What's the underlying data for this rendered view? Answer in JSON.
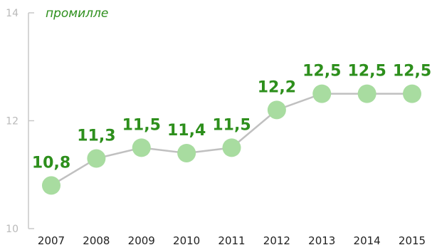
{
  "chart_data": {
    "type": "line",
    "unit_label": "промилле",
    "x": [
      "2007",
      "2008",
      "2009",
      "2010",
      "2011",
      "2012",
      "2013",
      "2014",
      "2015"
    ],
    "values": [
      10.8,
      11.3,
      11.5,
      11.4,
      11.5,
      12.2,
      12.5,
      12.5,
      12.5
    ],
    "data_labels": [
      "10,8",
      "11,3",
      "11,5",
      "11,4",
      "11,5",
      "12,2",
      "12,5",
      "12,5",
      "12,5"
    ],
    "y_ticks": [
      10,
      12,
      14
    ],
    "ylim": [
      10,
      14
    ],
    "grid": false,
    "colors": {
      "line": "#c0c0c0",
      "marker": "#a8dca0",
      "label": "#2d8f1c",
      "axis": "#c8c8c8"
    }
  }
}
